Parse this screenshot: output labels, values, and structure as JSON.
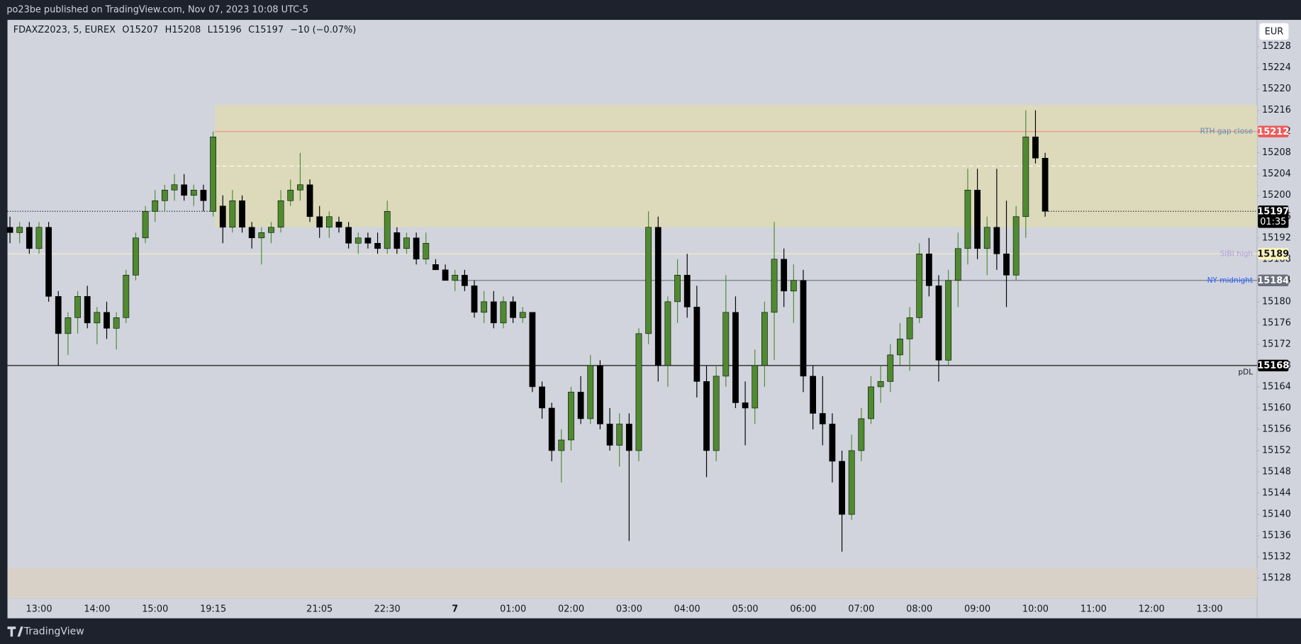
{
  "chart_data": {
    "type": "candlestick",
    "header": "po23be published on TradingView.com, Nov 07, 2023 10:08 UTC-5",
    "title": "FDAXZ2023, 5, EUREX",
    "legend_values": [
      {
        "label": "O",
        "value": 15207
      },
      {
        "label": "H",
        "value": 15208
      },
      {
        "label": "L",
        "value": 15196
      },
      {
        "label": "C",
        "value": 15197
      }
    ],
    "change": "−10 (−0.07%)",
    "currency": "EUR",
    "countdown": "01:35",
    "footer": "TradingView",
    "up_color": "#4f8a2f",
    "down_color": "#000000",
    "categories": [
      null,
      null,
      null,
      "13:00",
      null,
      null,
      null,
      null,
      null,
      "14:00",
      null,
      null,
      null,
      null,
      null,
      "15:00",
      null,
      null,
      null,
      null,
      null,
      "19:15",
      null,
      null,
      null,
      null,
      null,
      null,
      null,
      null,
      null,
      null,
      "21:05",
      null,
      null,
      null,
      null,
      null,
      null,
      "22:30",
      null,
      null,
      null,
      null,
      null,
      null,
      "7",
      null,
      null,
      null,
      null,
      null,
      "01:00",
      null,
      null,
      null,
      null,
      null,
      "02:00",
      null,
      null,
      null,
      null,
      null,
      "03:00",
      null,
      null,
      null,
      null,
      null,
      "04:00",
      null,
      null,
      null,
      null,
      null,
      "05:00",
      null,
      null,
      null,
      null,
      null,
      "06:00",
      null,
      null,
      null,
      null,
      null,
      "07:00",
      null,
      null,
      null,
      null,
      null,
      "08:00",
      null,
      null,
      null,
      null,
      null,
      "09:00",
      null,
      null,
      null,
      null,
      null,
      "10:00",
      null,
      null,
      null,
      null,
      null,
      "11:00",
      null,
      null,
      null,
      null,
      null,
      "12:00",
      null,
      null,
      null,
      null,
      null,
      "13:00",
      null,
      null,
      null,
      null
    ],
    "open": [
      15194,
      15193,
      15194,
      15190,
      15194,
      15181,
      15174,
      15177,
      15181,
      15176,
      15178,
      15175,
      15177,
      15185,
      15192,
      15197,
      15199,
      15201,
      15202,
      15200,
      15201,
      15197,
      15198,
      15194,
      15199,
      15194,
      15192,
      15193,
      15194,
      15199,
      15201,
      15202,
      15196,
      15194,
      15195,
      15194,
      15191,
      15192,
      15191,
      15190,
      15193,
      15190,
      15192,
      15188,
      15187,
      15186,
      15184,
      15185,
      15183,
      15178,
      15180,
      15176,
      15180,
      15177,
      15178,
      15164,
      15160,
      15152,
      15154,
      15163,
      15158,
      15168,
      15157,
      15153,
      15157,
      15152,
      15174,
      15194,
      15168,
      15180,
      15185,
      15179,
      15165,
      15152,
      15166,
      15178,
      15161,
      15160,
      15168,
      15178,
      15188,
      15182,
      15184,
      15166,
      15159,
      15157,
      15150,
      15140,
      15152,
      15158,
      15164,
      15165,
      15170,
      15173,
      15177,
      15189,
      15183,
      15169,
      15184,
      15190,
      15201,
      15190,
      15194,
      15189,
      15185,
      15196,
      15211,
      15207,
      null,
      null,
      null,
      null,
      null,
      null,
      null,
      null,
      null,
      null,
      null,
      null,
      null,
      null,
      null,
      null,
      null,
      null,
      null,
      null,
      null
    ],
    "high": [
      15196,
      15195,
      15195,
      15195,
      15195,
      15182,
      15178,
      15182,
      15183,
      15179,
      15180,
      15178,
      15186,
      15193,
      15198,
      15201,
      15202,
      15204,
      15204,
      15202,
      15202,
      15212,
      15200,
      15201,
      15200,
      15195,
      15194,
      15195,
      15201,
      15203,
      15208,
      15203,
      15198,
      15197,
      15196,
      15195,
      15193,
      15193,
      15193,
      15199,
      15194,
      15193,
      15193,
      15193,
      15188,
      15187,
      15186,
      15186,
      15184,
      15182,
      15182,
      15181,
      15181,
      15179,
      15178,
      15165,
      15161,
      15156,
      15164,
      15166,
      15170,
      15169,
      15160,
      15159,
      15159,
      15175,
      15197,
      15196,
      15181,
      15188,
      15189,
      15183,
      15168,
      15168,
      15185,
      15181,
      15165,
      15171,
      15180,
      15195,
      15190,
      15187,
      15186,
      15168,
      15166,
      15159,
      15152,
      15155,
      15160,
      15166,
      15168,
      15172,
      15176,
      15179,
      15191,
      15192,
      15185,
      15186,
      15193,
      15205,
      15205,
      15196,
      15205,
      15199,
      15198,
      15216,
      15216,
      15208,
      null,
      null,
      null,
      null,
      null,
      null,
      null,
      null,
      null,
      null,
      null,
      null,
      null,
      null,
      null,
      null,
      null,
      null,
      null,
      null,
      null
    ],
    "low": [
      15191,
      15191,
      15189,
      15189,
      15180,
      15168,
      15170,
      15174,
      15175,
      15172,
      15173,
      15171,
      15176,
      15184,
      15191,
      15195,
      15197,
      15199,
      15199,
      15198,
      15197,
      15196,
      15191,
      15193,
      15193,
      15190,
      15187,
      15191,
      15193,
      15198,
      15199,
      15195,
      15192,
      15192,
      15193,
      15190,
      15189,
      15190,
      15189,
      15189,
      15189,
      15189,
      15187,
      15187,
      15186,
      15184,
      15182,
      15182,
      15177,
      15176,
      15175,
      15175,
      15176,
      15176,
      15163,
      15158,
      15150,
      15146,
      15152,
      15157,
      15157,
      15156,
      15152,
      15149,
      15135,
      15150,
      15172,
      15165,
      15164,
      15176,
      15177,
      15162,
      15147,
      15150,
      15164,
      15160,
      15153,
      15157,
      15164,
      15169,
      15179,
      15176,
      15163,
      15156,
      15153,
      15146,
      15133,
      15139,
      15150,
      15157,
      15161,
      15163,
      15168,
      15167,
      15176,
      15181,
      15165,
      15168,
      15179,
      15187,
      15188,
      15185,
      15186,
      15179,
      15184,
      15192,
      15206,
      15196,
      null,
      null,
      null,
      null,
      null,
      null,
      null,
      null,
      null,
      null,
      null,
      null,
      null,
      null,
      null,
      null,
      null,
      null,
      null,
      null,
      null
    ],
    "close": [
      15193,
      15194,
      15190,
      15194,
      15181,
      15174,
      15177,
      15181,
      15176,
      15178,
      15175,
      15177,
      15185,
      15192,
      15197,
      15199,
      15201,
      15202,
      15200,
      15201,
      15199,
      15211,
      15194,
      15199,
      15194,
      15192,
      15193,
      15194,
      15199,
      15201,
      15202,
      15196,
      15194,
      15196,
      15194,
      15191,
      15192,
      15191,
      15190,
      15197,
      15190,
      15192,
      15188,
      15191,
      15186,
      15184,
      15185,
      15183,
      15178,
      15180,
      15176,
      15180,
      15177,
      15178,
      15164,
      15160,
      15152,
      15154,
      15163,
      15158,
      15168,
      15157,
      15153,
      15157,
      15152,
      15174,
      15194,
      15168,
      15180,
      15185,
      15179,
      15165,
      15152,
      15166,
      15178,
      15161,
      15160,
      15168,
      15178,
      15188,
      15182,
      15184,
      15166,
      15159,
      15157,
      15150,
      15140,
      15152,
      15158,
      15164,
      15165,
      15170,
      15173,
      15177,
      15189,
      15183,
      15169,
      15184,
      15190,
      15201,
      15190,
      15194,
      15189,
      15185,
      15196,
      15211,
      15207,
      15197,
      null,
      null,
      null,
      null,
      null,
      null,
      null,
      null,
      null,
      null,
      null,
      null,
      null,
      null,
      null,
      null,
      null,
      null,
      null,
      null,
      null
    ],
    "ylim": [
      15124.2,
      15233
    ],
    "yticks": [
      15128,
      15132,
      15136,
      15140,
      15144,
      15148,
      15152,
      15156,
      15160,
      15164,
      15168,
      15172,
      15176,
      15180,
      15184,
      15188,
      15192,
      15196,
      15200,
      15204,
      15208,
      15212,
      15216,
      15220,
      15224,
      15228
    ],
    "zones": [
      {
        "range": [
          15194,
          15217
        ],
        "color": "#dcdabb"
      },
      {
        "range": [
          15124.2,
          15130
        ],
        "color": "#d8d1c8"
      }
    ],
    "levels": [
      {
        "name": "RTH gap close",
        "value": 15212,
        "color": "#f28b82",
        "text_color": "#5b8db8",
        "tag_color": "#f05a5a",
        "tag_text": "#ffffff"
      },
      {
        "name": "SIBI high",
        "value": 15189,
        "color": "#f3efc0",
        "text_color": "#b39ddb",
        "tag_color": "#fff6b8",
        "tag_text": "#131722"
      },
      {
        "name": "NY midnight",
        "value": 15184,
        "color": "#6b6f7a",
        "text_color": "#2962ff",
        "tag_color": "#6b6f7a",
        "tag_text": "#ffffff"
      },
      {
        "name": "pDL",
        "value": 15168,
        "color": "#000000",
        "text_color": "#131722",
        "tag_color": "#000000",
        "tag_text": "#ffffff"
      }
    ]
  }
}
